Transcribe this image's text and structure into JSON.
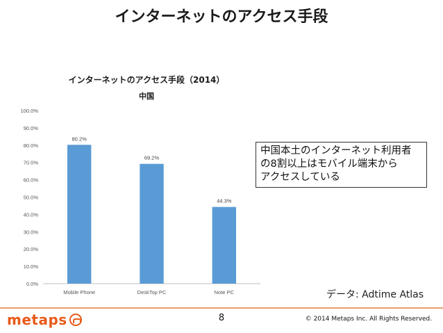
{
  "slide": {
    "title": "インターネットのアクセス手段"
  },
  "callout": {
    "lines": [
      "中国本土のインターネット利用者",
      "の8割以上はモバイル端末から",
      "アクセスしている"
    ]
  },
  "source": "データ: Adtime Atlas",
  "footer": {
    "logo_text": "metaps",
    "page_number": "8",
    "copyright": "© 2014 Metaps Inc. All Rights Reserved."
  },
  "colors": {
    "bar": "#5b9bd5",
    "footer_rule": "#e8a06a",
    "logo": "#e85a1a"
  },
  "chart_data": {
    "type": "bar",
    "title": "インターネットのアクセス手段（2014）",
    "subtitle": "中国",
    "categories": [
      "Mobile Phone",
      "DeskTop PC",
      "Note PC"
    ],
    "values": [
      80.2,
      69.2,
      44.3
    ],
    "data_labels": [
      "80.2%",
      "69.2%",
      "44.3%"
    ],
    "y_ticks": [
      "0.0%",
      "10.0%",
      "20.0%",
      "30.0%",
      "40.0%",
      "50.0%",
      "60.0%",
      "70.0%",
      "80.0%",
      "90.0%",
      "100.0%"
    ],
    "ylim": [
      0,
      100
    ],
    "grid": false,
    "legend": "none"
  }
}
